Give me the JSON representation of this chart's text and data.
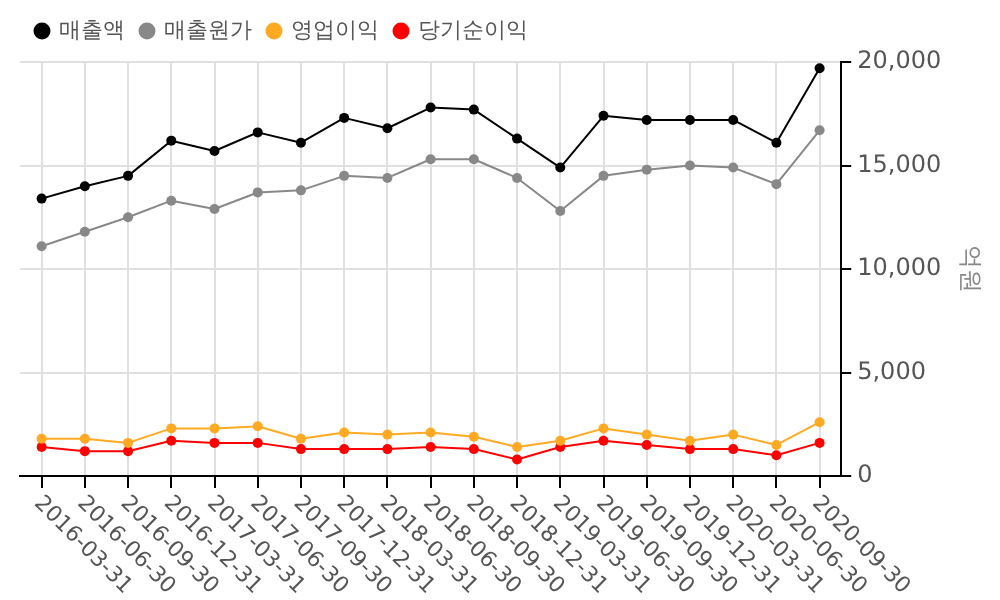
{
  "chart_data": {
    "type": "line",
    "ylabel": "억원",
    "categories": [
      "2016-03-31",
      "2016-06-30",
      "2016-09-30",
      "2016-12-31",
      "2017-03-31",
      "2017-06-30",
      "2017-09-30",
      "2017-12-31",
      "2018-03-31",
      "2018-06-30",
      "2018-09-30",
      "2018-12-31",
      "2019-03-31",
      "2019-06-30",
      "2019-09-30",
      "2019-12-31",
      "2020-03-31",
      "2020-06-30",
      "2020-09-30"
    ],
    "series": [
      {
        "name": "매출액",
        "color": "#000000",
        "values": [
          13400,
          14000,
          14500,
          16200,
          15700,
          16600,
          16100,
          17300,
          16800,
          17800,
          17700,
          16300,
          14900,
          17400,
          17200,
          17200,
          17200,
          16100,
          19700
        ]
      },
      {
        "name": "매출원가",
        "color": "#888888",
        "values": [
          11100,
          11800,
          12500,
          13300,
          12900,
          13700,
          13800,
          14500,
          14400,
          15300,
          15300,
          14400,
          12800,
          14500,
          14800,
          15000,
          14900,
          14100,
          16700
        ]
      },
      {
        "name": "영업이익",
        "color": "#ffaa22",
        "values": [
          1800,
          1800,
          1600,
          2300,
          2300,
          2400,
          1800,
          2100,
          2000,
          2100,
          1900,
          1400,
          1700,
          2300,
          2000,
          1700,
          2000,
          1500,
          2600
        ]
      },
      {
        "name": "당기순이익",
        "color": "#ff0000",
        "values": [
          1400,
          1200,
          1200,
          1700,
          1600,
          1600,
          1300,
          1300,
          1300,
          1400,
          1300,
          800,
          1400,
          1700,
          1500,
          1300,
          1300,
          1000,
          1600
        ]
      }
    ],
    "ylim": [
      0,
      20000
    ],
    "yticks": [
      0,
      {
        "value": 5000,
        "label": "5,000"
      },
      {
        "value": 10000,
        "label": "10,000"
      },
      {
        "value": 15000,
        "label": "15,000"
      },
      {
        "value": 20000,
        "label": "20,000"
      }
    ],
    "grid": true,
    "legend": "top left",
    "marker": "circle",
    "line_style": "solid"
  }
}
